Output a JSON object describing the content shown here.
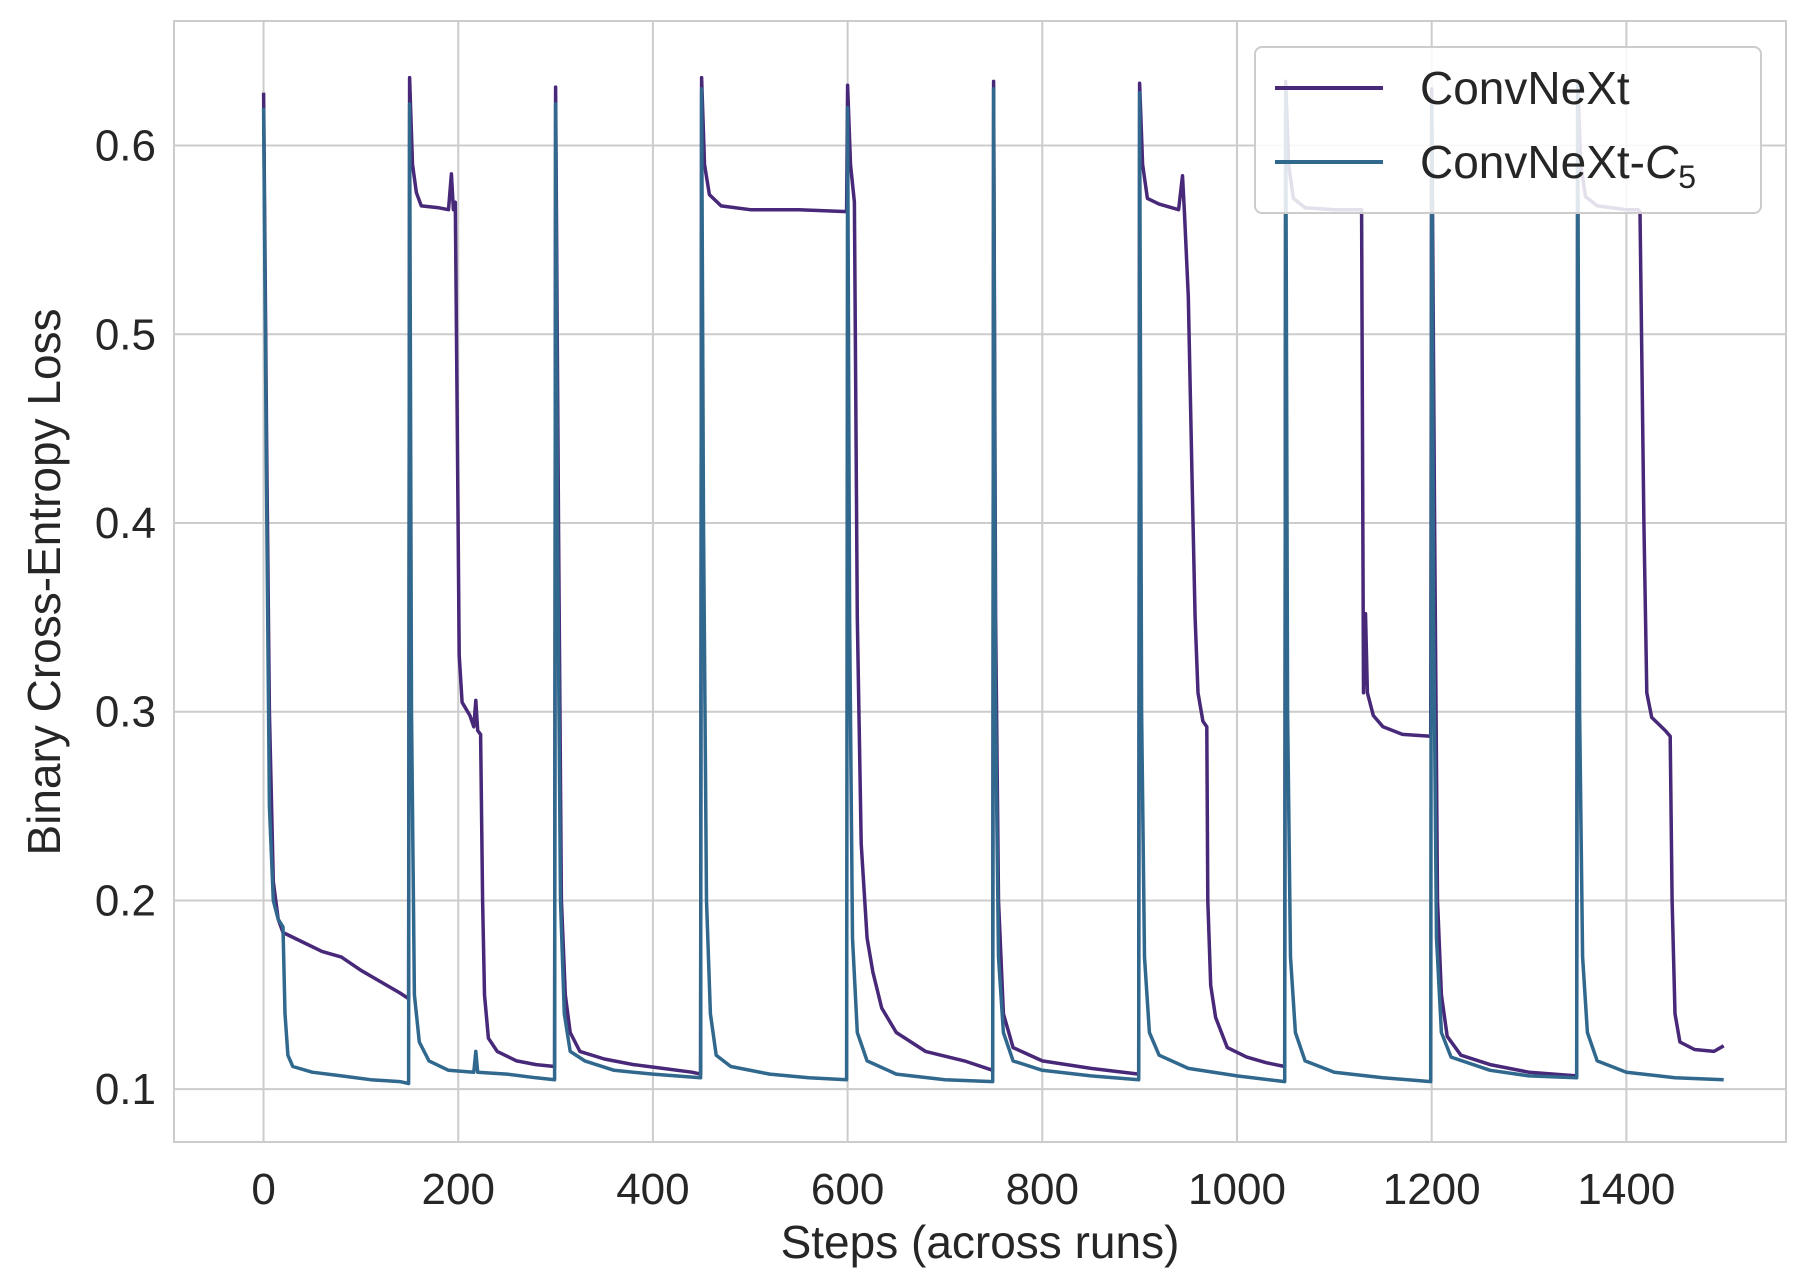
{
  "chart_data": {
    "type": "line",
    "title": "",
    "xlabel": "Steps (across runs)",
    "ylabel": "Binary Cross-Entropy Loss",
    "xlim": [
      -92,
      1564
    ],
    "ylim": [
      0.072,
      0.666
    ],
    "xticks": [
      0,
      200,
      400,
      600,
      800,
      1000,
      1200,
      1400
    ],
    "xtick_labels": [
      "0",
      "200",
      "400",
      "600",
      "800",
      "1000",
      "1200",
      "1400"
    ],
    "yticks": [
      0.1,
      0.2,
      0.3,
      0.4,
      0.5,
      0.6
    ],
    "ytick_labels": [
      "0.1",
      "0.2",
      "0.3",
      "0.4",
      "0.5",
      "0.6"
    ],
    "grid": true,
    "legend": {
      "position": "top-right",
      "entries": [
        {
          "label": "ConvNeXt",
          "sub": "",
          "color": "#482878"
        },
        {
          "label": "ConvNeXt-",
          "italic": "C",
          "sub": "5",
          "color": "#31688e"
        }
      ]
    },
    "series": [
      {
        "name": "ConvNeXt",
        "color": "#482878",
        "points": [
          [
            0,
            0.628
          ],
          [
            3,
            0.45
          ],
          [
            6,
            0.3
          ],
          [
            10,
            0.21
          ],
          [
            15,
            0.19
          ],
          [
            20,
            0.183
          ],
          [
            40,
            0.178
          ],
          [
            60,
            0.173
          ],
          [
            80,
            0.17
          ],
          [
            100,
            0.163
          ],
          [
            120,
            0.157
          ],
          [
            140,
            0.151
          ],
          [
            149,
            0.148
          ],
          [
            150,
            0.636
          ],
          [
            153,
            0.59
          ],
          [
            157,
            0.575
          ],
          [
            162,
            0.568
          ],
          [
            180,
            0.567
          ],
          [
            190,
            0.566
          ],
          [
            193,
            0.585
          ],
          [
            195,
            0.566
          ],
          [
            197,
            0.57
          ],
          [
            199,
            0.45
          ],
          [
            201,
            0.33
          ],
          [
            204,
            0.305
          ],
          [
            212,
            0.298
          ],
          [
            216,
            0.292
          ],
          [
            218,
            0.306
          ],
          [
            220,
            0.29
          ],
          [
            223,
            0.288
          ],
          [
            225,
            0.2
          ],
          [
            227,
            0.15
          ],
          [
            231,
            0.127
          ],
          [
            240,
            0.12
          ],
          [
            260,
            0.115
          ],
          [
            280,
            0.113
          ],
          [
            299,
            0.112
          ],
          [
            300,
            0.631
          ],
          [
            303,
            0.4
          ],
          [
            306,
            0.2
          ],
          [
            310,
            0.15
          ],
          [
            315,
            0.13
          ],
          [
            325,
            0.12
          ],
          [
            350,
            0.116
          ],
          [
            380,
            0.113
          ],
          [
            410,
            0.111
          ],
          [
            440,
            0.109
          ],
          [
            449,
            0.108
          ],
          [
            450,
            0.636
          ],
          [
            453,
            0.59
          ],
          [
            458,
            0.574
          ],
          [
            470,
            0.568
          ],
          [
            500,
            0.566
          ],
          [
            550,
            0.566
          ],
          [
            599,
            0.565
          ],
          [
            600,
            0.632
          ],
          [
            603,
            0.59
          ],
          [
            607,
            0.57
          ],
          [
            610,
            0.35
          ],
          [
            614,
            0.23
          ],
          [
            620,
            0.18
          ],
          [
            626,
            0.162
          ],
          [
            635,
            0.143
          ],
          [
            650,
            0.13
          ],
          [
            680,
            0.12
          ],
          [
            720,
            0.115
          ],
          [
            749,
            0.11
          ],
          [
            750,
            0.634
          ],
          [
            752,
            0.35
          ],
          [
            755,
            0.2
          ],
          [
            760,
            0.14
          ],
          [
            770,
            0.122
          ],
          [
            800,
            0.115
          ],
          [
            850,
            0.111
          ],
          [
            899,
            0.108
          ],
          [
            900,
            0.633
          ],
          [
            903,
            0.59
          ],
          [
            908,
            0.572
          ],
          [
            920,
            0.569
          ],
          [
            940,
            0.566
          ],
          [
            944,
            0.584
          ],
          [
            946,
            0.565
          ],
          [
            950,
            0.52
          ],
          [
            954,
            0.42
          ],
          [
            957,
            0.35
          ],
          [
            960,
            0.31
          ],
          [
            965,
            0.295
          ],
          [
            969,
            0.292
          ],
          [
            970,
            0.2
          ],
          [
            973,
            0.155
          ],
          [
            978,
            0.138
          ],
          [
            990,
            0.122
          ],
          [
            1010,
            0.117
          ],
          [
            1030,
            0.114
          ],
          [
            1049,
            0.112
          ],
          [
            1050,
            0.634
          ],
          [
            1053,
            0.59
          ],
          [
            1058,
            0.572
          ],
          [
            1070,
            0.567
          ],
          [
            1100,
            0.566
          ],
          [
            1128,
            0.566
          ],
          [
            1130,
            0.31
          ],
          [
            1132,
            0.352
          ],
          [
            1134,
            0.31
          ],
          [
            1140,
            0.298
          ],
          [
            1150,
            0.292
          ],
          [
            1170,
            0.288
          ],
          [
            1199,
            0.287
          ],
          [
            1200,
            0.63
          ],
          [
            1203,
            0.4
          ],
          [
            1206,
            0.2
          ],
          [
            1210,
            0.15
          ],
          [
            1216,
            0.128
          ],
          [
            1230,
            0.118
          ],
          [
            1260,
            0.113
          ],
          [
            1300,
            0.109
          ],
          [
            1349,
            0.107
          ],
          [
            1350,
            0.635
          ],
          [
            1353,
            0.59
          ],
          [
            1358,
            0.573
          ],
          [
            1370,
            0.568
          ],
          [
            1400,
            0.566
          ],
          [
            1412,
            0.566
          ],
          [
            1414,
            0.565
          ],
          [
            1418,
            0.4
          ],
          [
            1421,
            0.31
          ],
          [
            1426,
            0.297
          ],
          [
            1440,
            0.29
          ],
          [
            1445,
            0.287
          ],
          [
            1447,
            0.2
          ],
          [
            1450,
            0.14
          ],
          [
            1455,
            0.125
          ],
          [
            1470,
            0.121
          ],
          [
            1490,
            0.12
          ],
          [
            1500,
            0.123
          ]
        ]
      },
      {
        "name": "ConvNeXt-C5",
        "color": "#31688e",
        "points": [
          [
            0,
            0.62
          ],
          [
            3,
            0.42
          ],
          [
            6,
            0.25
          ],
          [
            10,
            0.2
          ],
          [
            15,
            0.19
          ],
          [
            20,
            0.186
          ],
          [
            22,
            0.14
          ],
          [
            25,
            0.118
          ],
          [
            30,
            0.112
          ],
          [
            50,
            0.109
          ],
          [
            80,
            0.107
          ],
          [
            110,
            0.105
          ],
          [
            140,
            0.104
          ],
          [
            149,
            0.103
          ],
          [
            150,
            0.622
          ],
          [
            152,
            0.3
          ],
          [
            155,
            0.15
          ],
          [
            160,
            0.125
          ],
          [
            170,
            0.115
          ],
          [
            190,
            0.11
          ],
          [
            216,
            0.109
          ],
          [
            218,
            0.12
          ],
          [
            220,
            0.109
          ],
          [
            250,
            0.108
          ],
          [
            280,
            0.106
          ],
          [
            299,
            0.105
          ],
          [
            300,
            0.622
          ],
          [
            302,
            0.4
          ],
          [
            305,
            0.2
          ],
          [
            309,
            0.14
          ],
          [
            315,
            0.12
          ],
          [
            330,
            0.115
          ],
          [
            360,
            0.11
          ],
          [
            400,
            0.108
          ],
          [
            449,
            0.106
          ],
          [
            450,
            0.63
          ],
          [
            452,
            0.4
          ],
          [
            455,
            0.2
          ],
          [
            459,
            0.14
          ],
          [
            465,
            0.118
          ],
          [
            480,
            0.112
          ],
          [
            520,
            0.108
          ],
          [
            560,
            0.106
          ],
          [
            599,
            0.105
          ],
          [
            600,
            0.62
          ],
          [
            602,
            0.35
          ],
          [
            605,
            0.18
          ],
          [
            610,
            0.13
          ],
          [
            620,
            0.115
          ],
          [
            650,
            0.108
          ],
          [
            700,
            0.105
          ],
          [
            749,
            0.104
          ],
          [
            750,
            0.63
          ],
          [
            752,
            0.3
          ],
          [
            755,
            0.17
          ],
          [
            760,
            0.13
          ],
          [
            770,
            0.115
          ],
          [
            800,
            0.11
          ],
          [
            850,
            0.107
          ],
          [
            899,
            0.105
          ],
          [
            900,
            0.628
          ],
          [
            902,
            0.3
          ],
          [
            905,
            0.17
          ],
          [
            910,
            0.13
          ],
          [
            920,
            0.118
          ],
          [
            950,
            0.111
          ],
          [
            1000,
            0.107
          ],
          [
            1049,
            0.104
          ],
          [
            1050,
            0.63
          ],
          [
            1052,
            0.3
          ],
          [
            1055,
            0.17
          ],
          [
            1060,
            0.13
          ],
          [
            1070,
            0.115
          ],
          [
            1100,
            0.109
          ],
          [
            1150,
            0.106
          ],
          [
            1199,
            0.104
          ],
          [
            1200,
            0.625
          ],
          [
            1202,
            0.35
          ],
          [
            1205,
            0.18
          ],
          [
            1210,
            0.13
          ],
          [
            1220,
            0.117
          ],
          [
            1260,
            0.11
          ],
          [
            1300,
            0.107
          ],
          [
            1349,
            0.106
          ],
          [
            1350,
            0.632
          ],
          [
            1352,
            0.3
          ],
          [
            1355,
            0.17
          ],
          [
            1360,
            0.13
          ],
          [
            1370,
            0.115
          ],
          [
            1400,
            0.109
          ],
          [
            1450,
            0.106
          ],
          [
            1500,
            0.105
          ]
        ]
      }
    ]
  }
}
